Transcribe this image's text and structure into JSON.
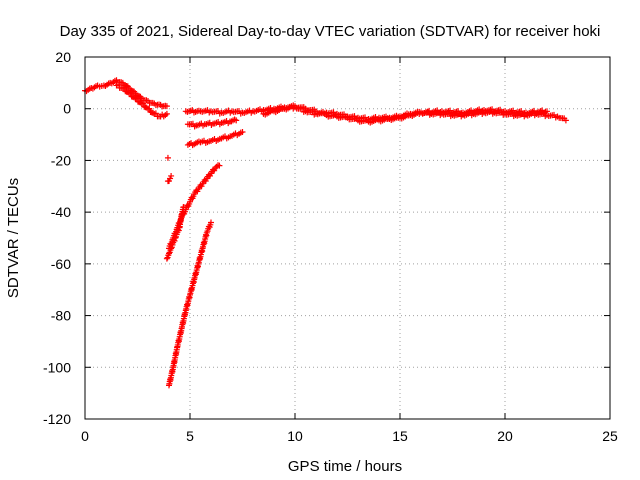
{
  "chart_data": {
    "type": "scatter",
    "title": "Day 335 of 2021, Sidereal Day-to-day VTEC variation (SDTVAR) for receiver hoki",
    "xlabel": "GPS time / hours",
    "ylabel": "SDTVAR / TECUs",
    "xlim": [
      0,
      25
    ],
    "ylim": [
      -120,
      20
    ],
    "xticks": [
      0,
      5,
      10,
      15,
      20,
      25
    ],
    "yticks": [
      20,
      0,
      -20,
      -40,
      -60,
      -80,
      -100,
      -120
    ],
    "grid": true,
    "legend": "none",
    "marker": "+",
    "color": "#ff0000",
    "series": [
      {
        "x": [
          0.0,
          0.3,
          0.6,
          0.9,
          1.2,
          1.5,
          1.8,
          2.1,
          2.4,
          2.7,
          3.0,
          3.3,
          3.6,
          3.9
        ],
        "y": [
          7,
          8,
          9,
          9,
          10,
          11,
          10,
          8,
          6,
          4,
          3,
          2,
          1.5,
          1
        ]
      },
      {
        "x": [
          1.5,
          1.8,
          2.1,
          2.4,
          2.7,
          3.0,
          3.3,
          3.6,
          3.9
        ],
        "y": [
          9,
          8,
          6,
          4,
          2,
          0,
          -2,
          -3,
          -2
        ]
      },
      {
        "x": [
          4.0,
          4.2,
          4.4,
          4.6,
          4.8,
          5.0,
          5.2,
          5.4,
          5.6,
          5.8,
          6.0,
          6.2,
          6.4
        ],
        "y": [
          -54,
          -50,
          -46,
          -42,
          -39,
          -36,
          -33,
          -31,
          -29,
          -27,
          -25,
          -23,
          -22
        ]
      },
      {
        "x": [
          4.0,
          4.2,
          4.4,
          4.6,
          4.8,
          5.0,
          5.2,
          5.4,
          5.6,
          5.8,
          6.0
        ],
        "y": [
          -107,
          -100,
          -92,
          -85,
          -78,
          -72,
          -66,
          -60,
          -54,
          -48,
          -44
        ]
      },
      {
        "x": [
          3.9,
          4.0,
          4.1,
          4.3,
          4.5,
          4.6,
          4.7
        ],
        "y": [
          -58,
          -56,
          -54,
          -50,
          -46,
          -41,
          -38
        ]
      },
      {
        "x": [
          3.95,
          4.05,
          4.1
        ],
        "y": [
          -28,
          -27,
          -26
        ]
      },
      {
        "x": [
          3.95
        ],
        "y": [
          -19
        ]
      },
      {
        "x": [
          4.9,
          5.5,
          6.0,
          6.5,
          7.0,
          7.5
        ],
        "y": [
          -14,
          -13,
          -12.5,
          -11.5,
          -10.5,
          -9
        ]
      },
      {
        "x": [
          4.9,
          5.3,
          5.7,
          6.1,
          6.5,
          6.9,
          7.2
        ],
        "y": [
          -6,
          -6.5,
          -6,
          -5.8,
          -5.5,
          -5,
          -4.5
        ]
      },
      {
        "x": [
          4.8,
          5.5,
          6.0,
          6.5,
          7.0,
          7.5,
          8.0,
          8.5,
          9.0,
          9.5,
          10.0,
          10.5,
          11.0,
          11.5,
          12.0,
          12.5,
          13.0,
          13.5,
          14.0,
          14.5,
          15.0,
          15.5,
          16.0,
          16.5,
          17.0,
          17.5,
          18.0,
          18.5,
          19.0,
          19.5,
          20.0,
          20.5,
          21.0,
          21.5,
          22.0,
          22.5,
          22.9
        ],
        "y": [
          -1,
          -1,
          -1,
          -1.5,
          -1,
          -1.5,
          -1,
          -0.5,
          0,
          0.5,
          0.5,
          -1,
          -2,
          -1.5,
          -2,
          -3,
          -3.5,
          -4,
          -3.5,
          -3.5,
          -3,
          -2,
          -1.5,
          -2,
          -2,
          -2.5,
          -2.5,
          -2,
          -1.5,
          -1.5,
          -2,
          -2.5,
          -2.5,
          -2,
          -2.5,
          -3,
          -4.5
        ]
      },
      {
        "x": [
          8.5,
          9.0,
          9.5,
          10.0,
          10.5,
          11.0,
          11.5,
          12.0,
          12.5,
          13.0,
          13.5,
          14.0,
          14.5,
          15.0,
          15.5,
          16.0,
          17.0,
          18.0,
          19.0,
          20.0,
          21.0,
          22.0
        ],
        "y": [
          -2,
          -1,
          0,
          1,
          0,
          -1,
          -2.5,
          -3,
          -3.5,
          -4.5,
          -5,
          -4.5,
          -4,
          -3.5,
          -2.5,
          -1.5,
          -1,
          -1.5,
          -0.5,
          -1,
          -1.5,
          -1
        ]
      }
    ]
  }
}
